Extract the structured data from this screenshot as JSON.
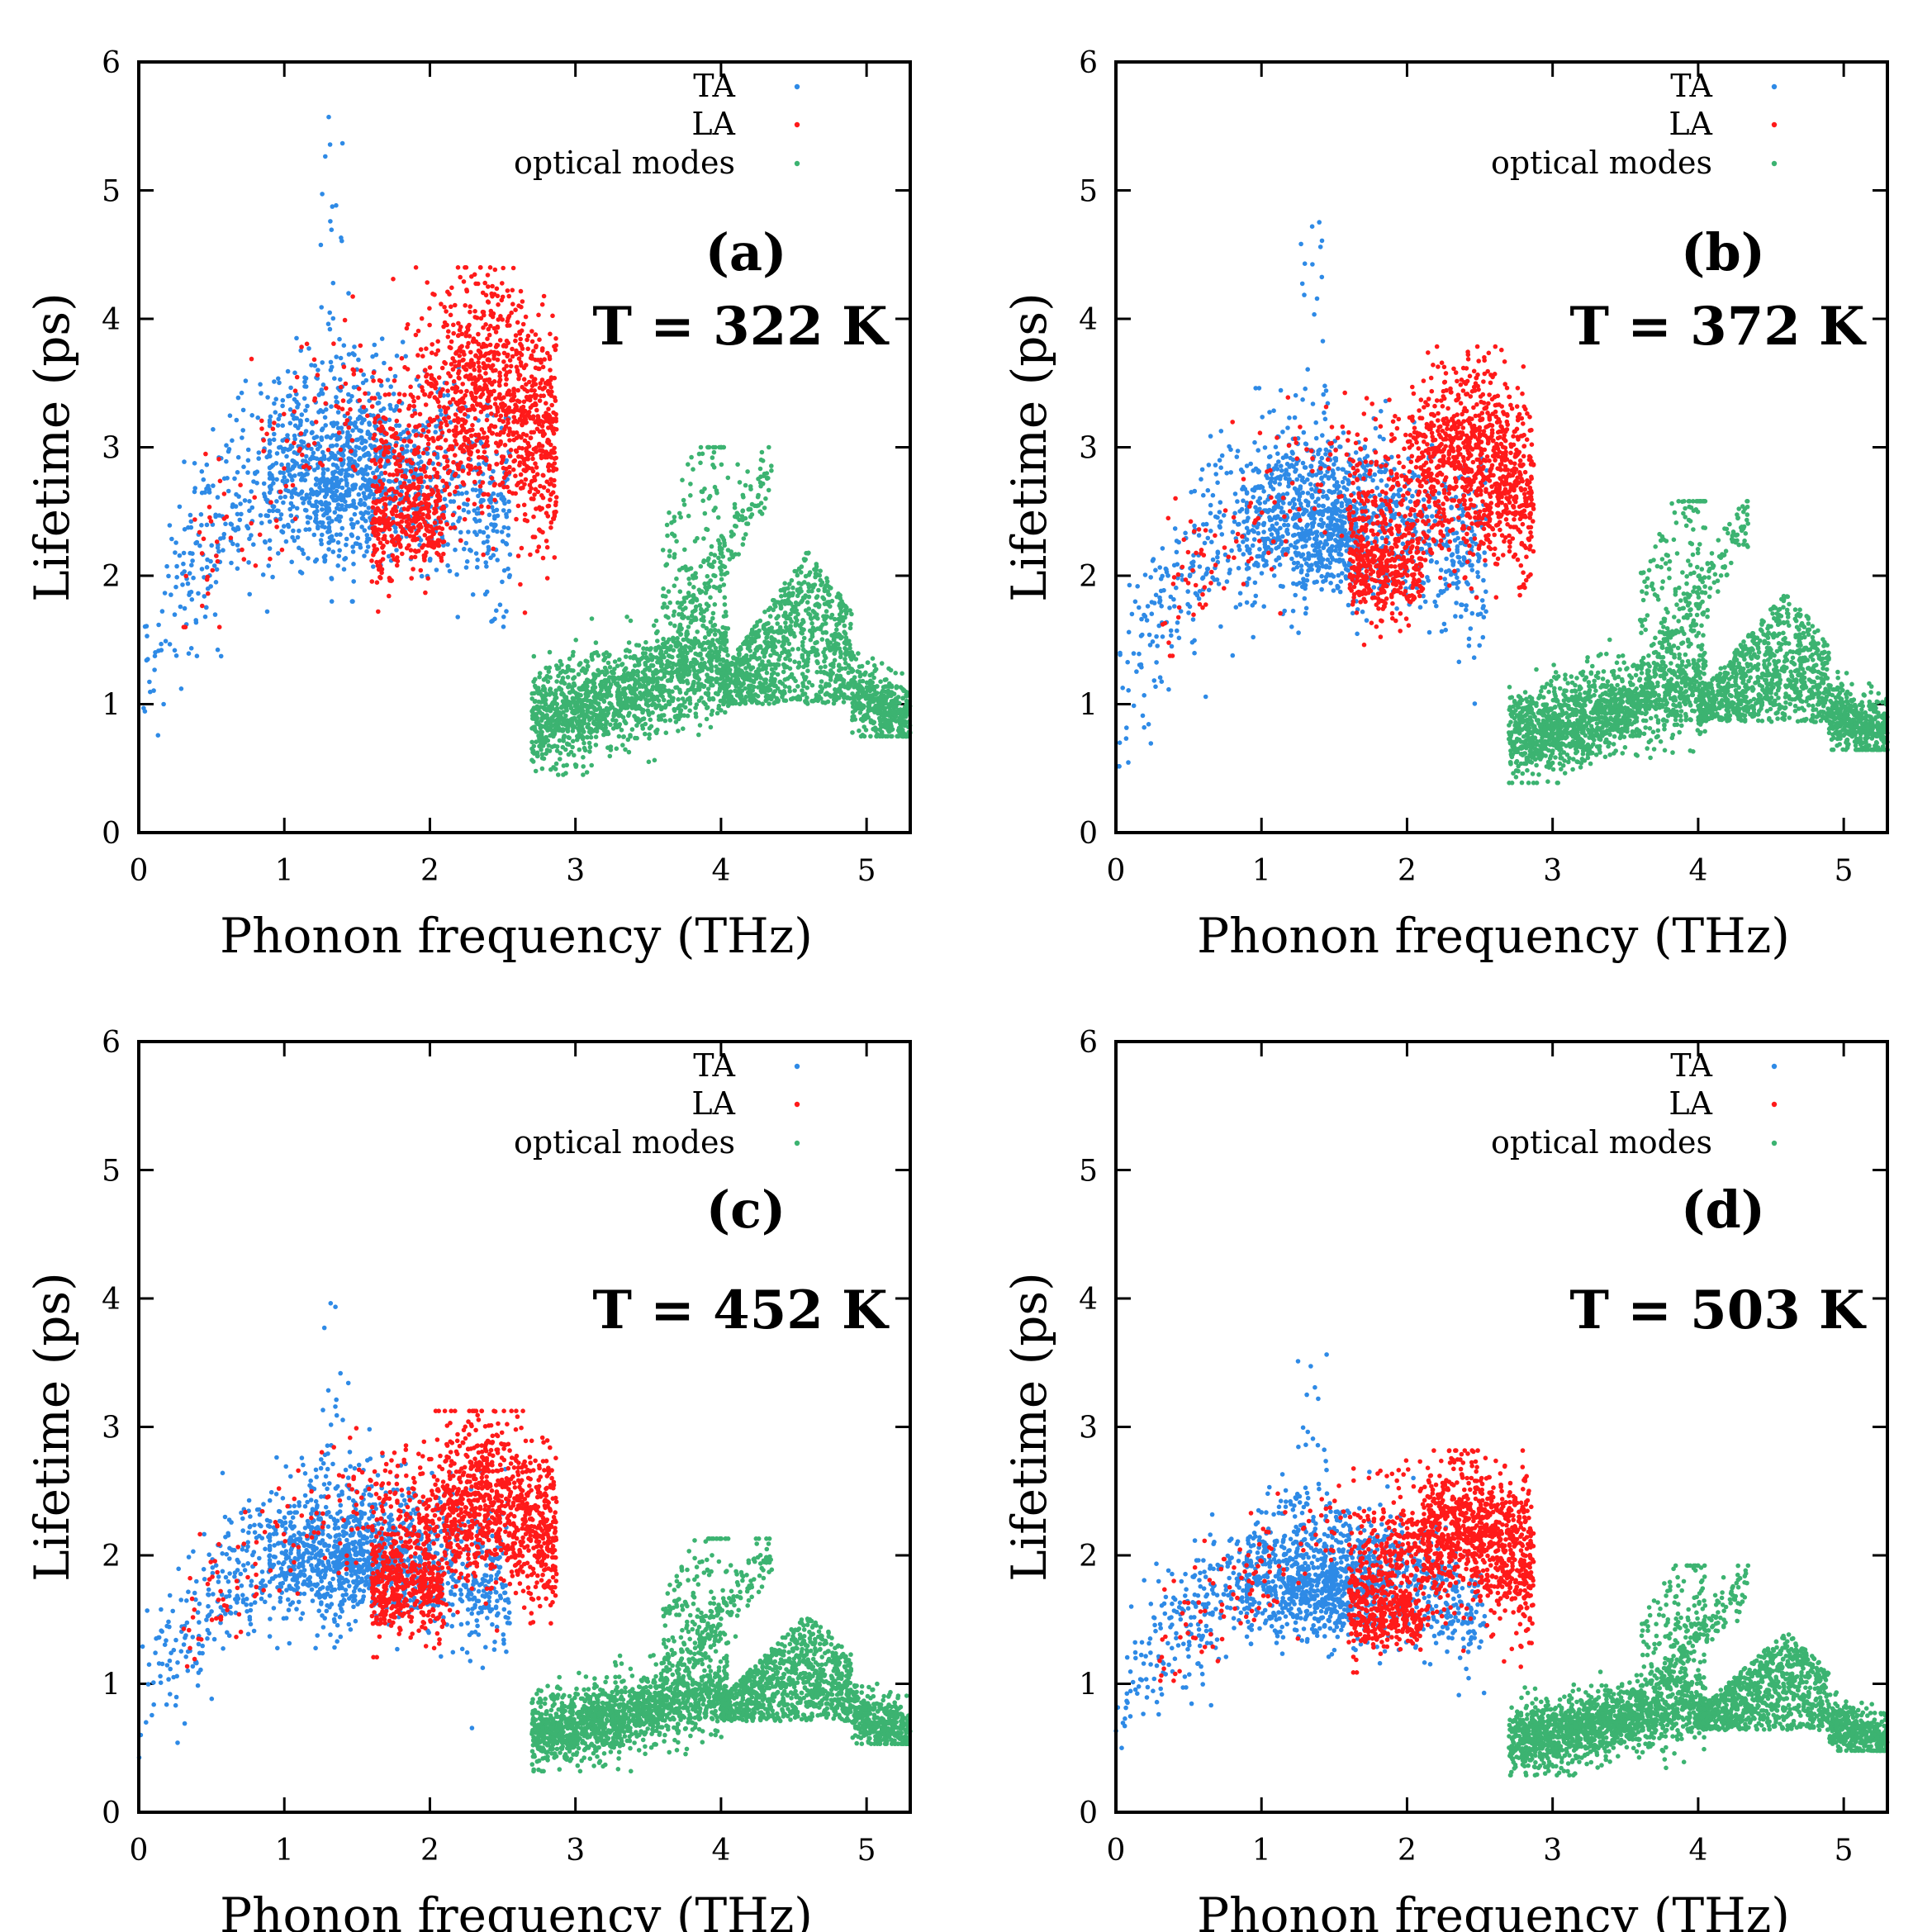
{
  "figure": {
    "description_axis": "Lifetime vs phonon frequency at four temperatures",
    "colors": {
      "TA": "#2e8ae6",
      "LA": "#ff1a1a",
      "optical": "#3cb371",
      "axis": "#000000"
    }
  },
  "chart_data": [
    {
      "type": "scatter",
      "panel_label": "(a)",
      "temperature_label": "T = 322 K",
      "xlabel": "Phonon frequency (THz)",
      "ylabel": "Lifetime (ps)",
      "xlim": [
        0,
        5.3
      ],
      "ylim": [
        0,
        6
      ],
      "xticks": [
        0,
        1,
        2,
        3,
        4,
        5
      ],
      "yticks": [
        0,
        1,
        2,
        3,
        4,
        5,
        6
      ],
      "legend": [
        "TA",
        "LA",
        "optical modes"
      ],
      "legend_position": "top-right",
      "lifetime_scale": 1.0,
      "series": [
        {
          "name": "TA",
          "color": "#2e8ae6",
          "x_range": [
            0,
            2.55
          ],
          "y_range": [
            0.6,
            5.7
          ],
          "peak": [
            1.33,
            5.7
          ]
        },
        {
          "name": "LA",
          "color": "#ff1a1a",
          "x_range": [
            0.3,
            2.87
          ],
          "y_range": [
            1.7,
            4.4
          ],
          "peak": [
            2.3,
            4.4
          ]
        },
        {
          "name": "optical modes",
          "color": "#3cb371",
          "x_range": [
            2.7,
            5.3
          ],
          "y_range": [
            0.45,
            3.0
          ],
          "peak": [
            4.35,
            3.0
          ]
        }
      ]
    },
    {
      "type": "scatter",
      "panel_label": "(b)",
      "temperature_label": "T = 372 K",
      "xlabel": "Phonon frequency (THz)",
      "ylabel": "Lifetime (ps)",
      "xlim": [
        0,
        5.3
      ],
      "ylim": [
        0,
        6
      ],
      "xticks": [
        0,
        1,
        2,
        3,
        4,
        5
      ],
      "yticks": [
        0,
        1,
        2,
        3,
        4,
        5,
        6
      ],
      "legend": [
        "TA",
        "LA",
        "optical modes"
      ],
      "legend_position": "top-right",
      "lifetime_scale": 0.86,
      "series": [
        {
          "name": "TA",
          "color": "#2e8ae6",
          "x_range": [
            0,
            2.55
          ],
          "y_range": [
            0.5,
            4.9
          ],
          "peak": [
            1.33,
            4.9
          ]
        },
        {
          "name": "LA",
          "color": "#ff1a1a",
          "x_range": [
            0.3,
            2.87
          ],
          "y_range": [
            1.45,
            3.8
          ],
          "peak": [
            2.3,
            3.8
          ]
        },
        {
          "name": "optical modes",
          "color": "#3cb371",
          "x_range": [
            2.7,
            5.3
          ],
          "y_range": [
            0.4,
            2.6
          ],
          "peak": [
            4.35,
            2.6
          ]
        }
      ]
    },
    {
      "type": "scatter",
      "panel_label": "(c)",
      "temperature_label": "T = 452 K",
      "xlabel": "Phonon frequency (THz)",
      "ylabel": "Lifetime (ps)",
      "xlim": [
        0,
        5.3
      ],
      "ylim": [
        0,
        6
      ],
      "xticks": [
        0,
        1,
        2,
        3,
        4,
        5
      ],
      "yticks": [
        0,
        1,
        2,
        3,
        4,
        5,
        6
      ],
      "legend": [
        "TA",
        "LA",
        "optical modes"
      ],
      "legend_position": "top-right",
      "lifetime_scale": 0.71,
      "series": [
        {
          "name": "TA",
          "color": "#2e8ae6",
          "x_range": [
            0,
            2.55
          ],
          "y_range": [
            0.4,
            4.05
          ],
          "peak": [
            1.33,
            4.05
          ]
        },
        {
          "name": "LA",
          "color": "#ff1a1a",
          "x_range": [
            0.3,
            2.87
          ],
          "y_range": [
            1.2,
            3.1
          ],
          "peak": [
            2.3,
            3.1
          ]
        },
        {
          "name": "optical modes",
          "color": "#3cb371",
          "x_range": [
            2.7,
            5.3
          ],
          "y_range": [
            0.33,
            2.15
          ],
          "peak": [
            4.35,
            2.15
          ]
        }
      ]
    },
    {
      "type": "scatter",
      "panel_label": "(d)",
      "temperature_label": "T = 503 K",
      "xlabel": "Phonon frequency (THz)",
      "ylabel": "Lifetime (ps)",
      "xlim": [
        0,
        5.3
      ],
      "ylim": [
        0,
        6
      ],
      "xticks": [
        0,
        1,
        2,
        3,
        4,
        5
      ],
      "yticks": [
        0,
        1,
        2,
        3,
        4,
        5,
        6
      ],
      "legend": [
        "TA",
        "LA",
        "optical modes"
      ],
      "legend_position": "top-right",
      "lifetime_scale": 0.64,
      "series": [
        {
          "name": "TA",
          "color": "#2e8ae6",
          "x_range": [
            0,
            2.55
          ],
          "y_range": [
            0.35,
            3.65
          ],
          "peak": [
            1.33,
            3.65
          ]
        },
        {
          "name": "LA",
          "color": "#ff1a1a",
          "x_range": [
            0.3,
            2.87
          ],
          "y_range": [
            1.05,
            2.8
          ],
          "peak": [
            2.3,
            2.8
          ]
        },
        {
          "name": "optical modes",
          "color": "#3cb371",
          "x_range": [
            2.7,
            5.3
          ],
          "y_range": [
            0.3,
            1.92
          ],
          "peak": [
            4.35,
            1.92
          ]
        }
      ]
    }
  ]
}
